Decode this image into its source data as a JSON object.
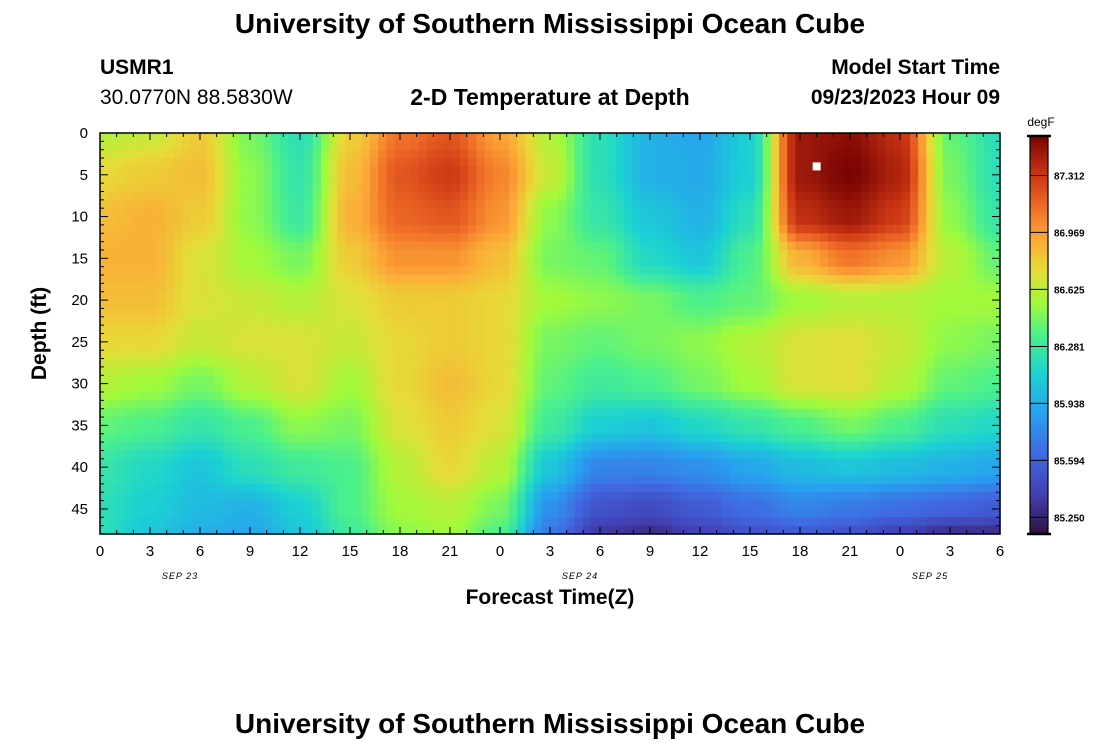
{
  "header": {
    "title": "University of Southern Mississippi Ocean Cube",
    "station": "USMR1",
    "coords": "30.0770N  88.5830W",
    "subtitle": "2-D Temperature at Depth",
    "model_start_label": "Model Start Time",
    "model_start_value": "09/23/2023 Hour 09"
  },
  "footer": {
    "title": "University of Southern Mississippi Ocean Cube"
  },
  "chart_data": {
    "type": "heatmap",
    "xlabel": "Forecast Time(Z)",
    "ylabel": "Depth (ft)",
    "x_ticks": [
      "0",
      "3",
      "6",
      "9",
      "12",
      "15",
      "18",
      "21",
      "0",
      "3",
      "6",
      "9",
      "12",
      "15",
      "18",
      "21",
      "0",
      "3",
      "6"
    ],
    "date_labels": [
      {
        "label": "SEP 23",
        "tick_index": 1.6
      },
      {
        "label": "SEP 24",
        "tick_index": 9.6
      },
      {
        "label": "SEP 25",
        "tick_index": 16.6
      }
    ],
    "y_ticks": [
      0,
      5,
      10,
      15,
      20,
      25,
      30,
      35,
      40,
      45
    ],
    "ylim": [
      0,
      48
    ],
    "xrange_hours": [
      0,
      54
    ],
    "colorbar": {
      "unit": "degF",
      "ticks": [
        "87.312",
        "86.969",
        "86.625",
        "86.281",
        "85.938",
        "85.594",
        "85.250"
      ],
      "range": [
        85.15,
        87.55
      ]
    },
    "marker": {
      "hour": 43,
      "depth": 4
    },
    "depths": [
      0,
      5,
      10,
      15,
      20,
      25,
      30,
      35,
      40,
      45,
      48
    ],
    "values_by_depth": [
      [
        86.6,
        86.65,
        86.8,
        86.45,
        86.2,
        86.78,
        87.1,
        87.2,
        86.95,
        86.6,
        86.2,
        85.95,
        85.9,
        86.1,
        87.45,
        87.5,
        87.35,
        86.4,
        86.2
      ],
      [
        86.75,
        86.8,
        86.85,
        86.5,
        86.25,
        86.85,
        87.2,
        87.3,
        87.05,
        86.65,
        86.2,
        85.95,
        85.92,
        86.1,
        87.45,
        87.55,
        87.4,
        86.45,
        86.2
      ],
      [
        86.85,
        86.9,
        86.8,
        86.5,
        86.28,
        86.9,
        87.15,
        87.2,
        87.0,
        86.5,
        86.25,
        86.05,
        85.95,
        86.2,
        87.35,
        87.45,
        87.3,
        86.5,
        86.25
      ],
      [
        86.9,
        86.9,
        86.7,
        86.55,
        86.45,
        86.8,
        87.0,
        87.0,
        86.85,
        86.45,
        86.4,
        86.15,
        86.05,
        86.35,
        86.9,
        87.1,
        87.0,
        86.6,
        86.4
      ],
      [
        86.85,
        86.85,
        86.7,
        86.65,
        86.6,
        86.7,
        86.8,
        86.8,
        86.75,
        86.55,
        86.5,
        86.45,
        86.35,
        86.4,
        86.55,
        86.6,
        86.6,
        86.55,
        86.55
      ],
      [
        86.75,
        86.75,
        86.65,
        86.7,
        86.7,
        86.65,
        86.75,
        86.8,
        86.75,
        86.45,
        86.4,
        86.45,
        86.5,
        86.6,
        86.7,
        86.72,
        86.65,
        86.5,
        86.45
      ],
      [
        86.6,
        86.55,
        86.45,
        86.6,
        86.7,
        86.55,
        86.75,
        86.85,
        86.75,
        86.4,
        86.3,
        86.35,
        86.45,
        86.55,
        86.7,
        86.72,
        86.6,
        86.4,
        86.35
      ],
      [
        86.4,
        86.35,
        86.25,
        86.35,
        86.5,
        86.45,
        86.7,
        86.8,
        86.7,
        86.3,
        86.1,
        86.05,
        86.15,
        86.25,
        86.35,
        86.45,
        86.35,
        86.2,
        86.15
      ],
      [
        86.25,
        86.15,
        86.05,
        86.2,
        86.3,
        86.35,
        86.6,
        86.75,
        86.6,
        86.05,
        85.75,
        85.75,
        85.8,
        85.9,
        86.0,
        86.05,
        86.0,
        85.95,
        85.9
      ],
      [
        86.2,
        86.1,
        86.0,
        85.95,
        86.1,
        86.35,
        86.55,
        86.6,
        86.45,
        85.8,
        85.5,
        85.45,
        85.55,
        85.65,
        85.75,
        85.7,
        85.65,
        85.6,
        85.55
      ],
      [
        86.2,
        86.05,
        85.95,
        85.9,
        86.05,
        86.3,
        86.5,
        86.55,
        86.35,
        85.7,
        85.35,
        85.3,
        85.4,
        85.5,
        85.55,
        85.5,
        85.4,
        85.3,
        85.3
      ]
    ]
  }
}
